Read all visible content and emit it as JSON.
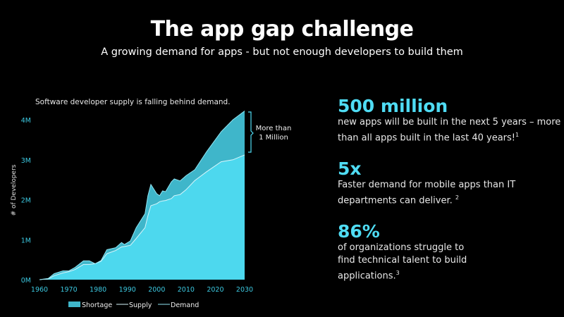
{
  "slide": {
    "title": "The app gap challenge",
    "subtitle": "A growing demand for apps - but not enough developers to build them"
  },
  "stats": [
    {
      "value": "500 million",
      "text": "new apps will be built in the next 5 years – more than all apps built in the last 40 years!",
      "footnote": "1"
    },
    {
      "value": "5x",
      "text": "Faster demand for mobile apps than IT departments can deliver. ",
      "footnote": "2"
    },
    {
      "value": "86%",
      "text": "of organizations struggle to find technical talent to build applications.",
      "footnote": "3"
    }
  ],
  "colors": {
    "accent": "#4fdcf4",
    "supply_fill": "#4dd8ee",
    "shortage_fill": "#3fb6ca",
    "axis_text": "#3cc8e0"
  },
  "chart_data": {
    "type": "area",
    "title": "Software developer supply is falling behind demand.",
    "xlabel": "",
    "ylabel": "# of Developers",
    "xlim": [
      1960,
      2030
    ],
    "ylim": [
      0,
      4.2
    ],
    "x_ticks": [
      "1960",
      "1970",
      "1980",
      "1990",
      "2000",
      "2010",
      "2020",
      "2030"
    ],
    "y_ticks": [
      "0M",
      "1M",
      "2M",
      "3M",
      "4M"
    ],
    "y_tick_values": [
      0,
      1,
      2,
      3,
      4
    ],
    "x_tick_values": [
      1960,
      1970,
      1980,
      1990,
      2000,
      2010,
      2020,
      2030
    ],
    "legend": [
      "Shortage",
      "Supply",
      "Demand"
    ],
    "legend_position": "bottom",
    "annotation": "More than 1 Million",
    "x": [
      1960,
      1963,
      1965,
      1968,
      1970,
      1972,
      1975,
      1977,
      1979,
      1981,
      1983,
      1986,
      1988,
      1989,
      1991,
      1993,
      1996,
      1997,
      1998,
      2000,
      2001,
      2002,
      2003,
      2005,
      2006,
      2008,
      2010,
      2013,
      2017,
      2022,
      2026,
      2030
    ],
    "series": [
      {
        "name": "Supply",
        "values": [
          0,
          0.02,
          0.1,
          0.17,
          0.2,
          0.25,
          0.38,
          0.38,
          0.4,
          0.46,
          0.65,
          0.73,
          0.82,
          0.83,
          0.86,
          1.03,
          1.3,
          1.6,
          1.85,
          1.9,
          1.95,
          1.97,
          1.98,
          2.03,
          2.1,
          2.13,
          2.25,
          2.48,
          2.7,
          2.95,
          3.0,
          3.12
        ]
      },
      {
        "name": "Demand",
        "values": [
          0,
          0.03,
          0.15,
          0.22,
          0.22,
          0.3,
          0.47,
          0.47,
          0.4,
          0.48,
          0.75,
          0.8,
          0.93,
          0.88,
          0.97,
          1.3,
          1.65,
          2.1,
          2.38,
          2.15,
          2.1,
          2.22,
          2.2,
          2.45,
          2.52,
          2.47,
          2.6,
          2.75,
          3.2,
          3.7,
          4.0,
          4.22
        ]
      }
    ]
  }
}
